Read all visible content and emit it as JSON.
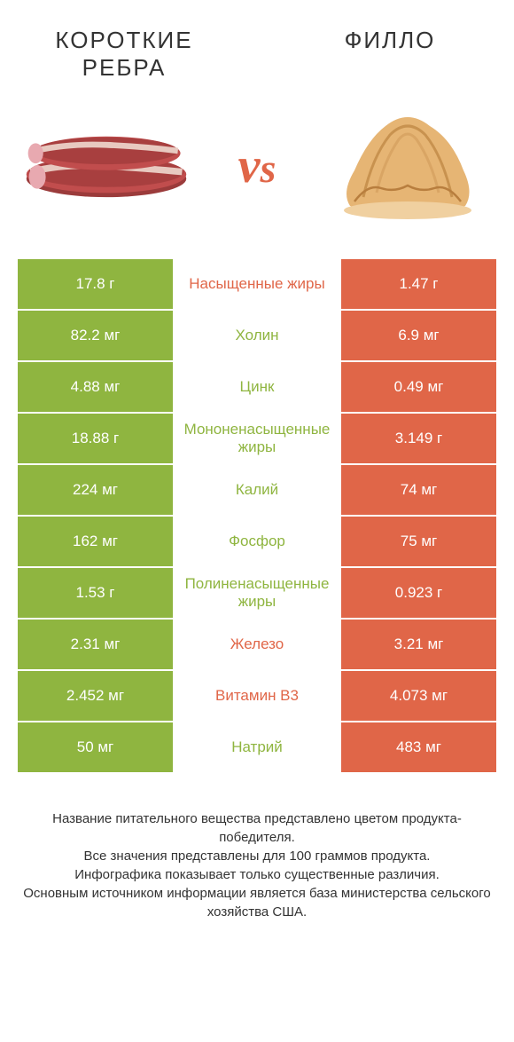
{
  "header": {
    "left_title": "КОРОТКИЕ РЕБРА",
    "right_title": "ФИЛЛО",
    "vs": "vs"
  },
  "colors": {
    "green": "#8fb540",
    "orange": "#e06648"
  },
  "rows": [
    {
      "left": "17.8 г",
      "label": "Насыщенные жиры",
      "right": "1.47 г",
      "winner": "orange"
    },
    {
      "left": "82.2 мг",
      "label": "Холин",
      "right": "6.9 мг",
      "winner": "green"
    },
    {
      "left": "4.88 мг",
      "label": "Цинк",
      "right": "0.49 мг",
      "winner": "green"
    },
    {
      "left": "18.88 г",
      "label": "Мононенасыщенные жиры",
      "right": "3.149 г",
      "winner": "green"
    },
    {
      "left": "224 мг",
      "label": "Калий",
      "right": "74 мг",
      "winner": "green"
    },
    {
      "left": "162 мг",
      "label": "Фосфор",
      "right": "75 мг",
      "winner": "green"
    },
    {
      "left": "1.53 г",
      "label": "Полиненасыщенные жиры",
      "right": "0.923 г",
      "winner": "green"
    },
    {
      "left": "2.31 мг",
      "label": "Железо",
      "right": "3.21 мг",
      "winner": "orange"
    },
    {
      "left": "2.452 мг",
      "label": "Витамин B3",
      "right": "4.073 мг",
      "winner": "orange"
    },
    {
      "left": "50 мг",
      "label": "Натрий",
      "right": "483 мг",
      "winner": "green"
    }
  ],
  "footer": {
    "line1": "Название питательного вещества представлено цветом продукта-победителя.",
    "line2": "Все значения представлены для 100 граммов продукта.",
    "line3": "Инфографика показывает только существенные различия.",
    "line4": "Основным источником информации является база министерства сельского хозяйства США."
  }
}
